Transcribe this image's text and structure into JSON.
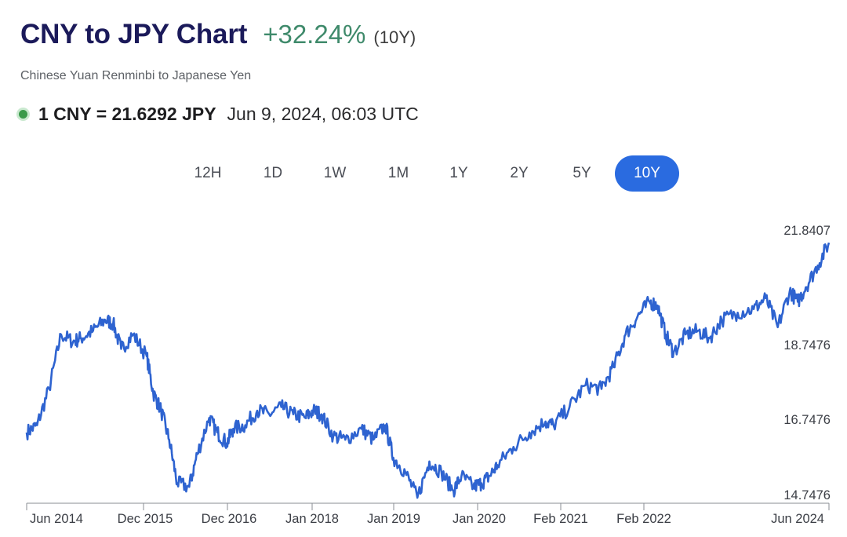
{
  "header": {
    "title": "CNY to JPY Chart",
    "change": "+32.24%",
    "period": "(10Y)",
    "subtitle": "Chinese Yuan Renminbi to Japanese Yen",
    "rate": "1 CNY = 21.6292 JPY",
    "timestamp": "Jun 9, 2024, 06:03 UTC"
  },
  "range_tabs": [
    {
      "label": "12H",
      "active": false
    },
    {
      "label": "1D",
      "active": false
    },
    {
      "label": "1W",
      "active": false
    },
    {
      "label": "1M",
      "active": false
    },
    {
      "label": "1Y",
      "active": false
    },
    {
      "label": "2Y",
      "active": false
    },
    {
      "label": "5Y",
      "active": false
    },
    {
      "label": "10Y",
      "active": true
    }
  ],
  "colors": {
    "line": "#2e63d0",
    "active_tab": "#2a6be0",
    "title": "#1b1a5a",
    "change_positive": "#3f8a6b",
    "live_dot": "#3a9a4a"
  },
  "chart_data": {
    "type": "line",
    "title": "CNY to JPY Chart",
    "xlabel": "",
    "ylabel": "",
    "x_tick_labels": [
      "Jun 2014",
      "Dec 2015",
      "Dec 2016",
      "Jan 2018",
      "Jan 2019",
      "Jan 2020",
      "Feb 2021",
      "Feb 2022",
      "Jun 2024"
    ],
    "y_tick_labels": [
      "21.8407",
      "18.7476",
      "16.7476",
      "14.7476"
    ],
    "ylim": [
      14.6,
      22.0
    ],
    "grid": false,
    "series": [
      {
        "x": [
          2014.42,
          2014.55,
          2014.7,
          2014.85,
          2015.0,
          2015.1,
          2015.25,
          2015.4,
          2015.5,
          2015.6,
          2015.75,
          2015.92,
          2016.0,
          2016.1,
          2016.2,
          2016.3,
          2016.45,
          2016.55,
          2016.7,
          2016.8,
          2016.92,
          2017.0,
          2017.15,
          2017.3,
          2017.45,
          2017.6,
          2017.75,
          2017.9,
          2018.0,
          2018.1,
          2018.25,
          2018.4,
          2018.6,
          2018.75,
          2018.9,
          2019.0,
          2019.15,
          2019.3,
          2019.45,
          2019.6,
          2019.75,
          2019.85,
          2020.0,
          2020.1,
          2020.2,
          2020.3,
          2020.5,
          2020.7,
          2020.9,
          2021.0,
          2021.2,
          2021.4,
          2021.6,
          2021.75,
          2021.9,
          2022.05,
          2022.2,
          2022.3,
          2022.4,
          2022.5,
          2022.65,
          2022.8,
          2022.95,
          2023.1,
          2023.3,
          2023.5,
          2023.65,
          2023.8,
          2023.95,
          2024.05,
          2024.15,
          2024.3,
          2024.44
        ],
        "y": [
          16.4,
          16.6,
          17.6,
          19.1,
          18.9,
          19.0,
          19.2,
          19.5,
          19.4,
          18.7,
          19.1,
          18.5,
          17.5,
          17.0,
          16.2,
          15.0,
          14.9,
          15.8,
          16.8,
          16.4,
          16.1,
          16.5,
          16.6,
          17.0,
          16.9,
          17.1,
          16.9,
          16.8,
          17.0,
          16.9,
          16.3,
          16.2,
          16.5,
          16.2,
          16.6,
          15.7,
          15.3,
          14.6,
          15.6,
          15.3,
          14.8,
          15.2,
          14.9,
          15.0,
          15.2,
          15.5,
          16.0,
          16.4,
          16.7,
          16.6,
          17.1,
          17.7,
          17.6,
          18.2,
          19.1,
          19.6,
          20.0,
          19.9,
          19.1,
          18.6,
          19.1,
          19.2,
          19.0,
          19.5,
          19.7,
          19.8,
          20.1,
          19.3,
          20.3,
          20.0,
          20.4,
          21.0,
          21.63
        ]
      }
    ]
  }
}
